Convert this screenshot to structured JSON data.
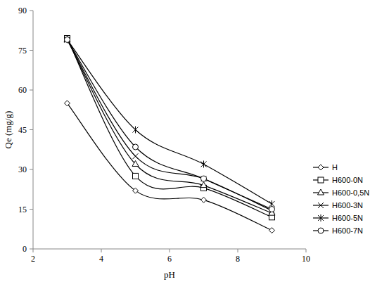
{
  "chart_data": {
    "type": "line",
    "x_label": "pH",
    "y_label": "Qe (mg/g)",
    "x": [
      3,
      5,
      7,
      9
    ],
    "xlim": [
      2,
      10
    ],
    "xticks": [
      2,
      4,
      6,
      8,
      10
    ],
    "ylim": [
      0,
      90
    ],
    "yticks": [
      0,
      15,
      30,
      45,
      60,
      75,
      90
    ],
    "legend": "right",
    "series": [
      {
        "name": "H",
        "color": "#000000",
        "marker": "diamond",
        "values": [
          55,
          22,
          18.5,
          7
        ]
      },
      {
        "name": "H600-0N",
        "color": "#000000",
        "marker": "square",
        "values": [
          79.5,
          27.5,
          23,
          12
        ]
      },
      {
        "name": "H600-0,5N",
        "color": "#000000",
        "marker": "triangle",
        "values": [
          79,
          32,
          24,
          13.5
        ]
      },
      {
        "name": "H600-3N",
        "color": "#000000",
        "marker": "x",
        "values": [
          79,
          35,
          26.5,
          14.5
        ]
      },
      {
        "name": "H600-5N",
        "color": "#000000",
        "marker": "star",
        "values": [
          79,
          45,
          32,
          17
        ]
      },
      {
        "name": "H600-7N",
        "color": "#000000",
        "marker": "circle",
        "values": [
          79,
          38.5,
          26.5,
          15
        ]
      }
    ]
  }
}
